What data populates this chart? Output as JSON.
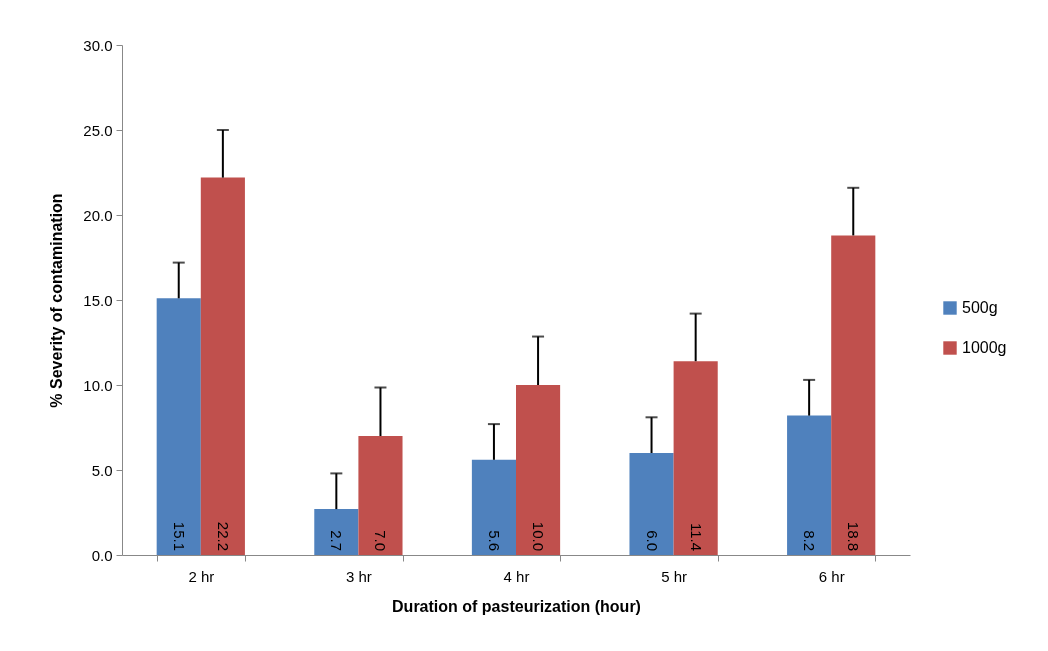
{
  "chart_data": {
    "type": "bar",
    "xlabel": "Duration of pasteurization (hour)",
    "ylabel": "% Severity of  contamination",
    "categories": [
      "2 hr",
      "3 hr",
      "4 hr",
      "5 hr",
      "6 hr"
    ],
    "series": [
      {
        "name": "500g",
        "color": "#4f81bd",
        "values": [
          15.1,
          2.7,
          5.6,
          6.0,
          8.2
        ],
        "value_labels": [
          "15.1",
          "2.7",
          "5.6",
          "6.0",
          "8.2"
        ],
        "errors": [
          [
            15.1,
            17.2
          ],
          [
            2.7,
            4.8
          ],
          [
            5.6,
            7.7
          ],
          [
            6.0,
            8.1
          ],
          [
            8.2,
            10.3
          ]
        ]
      },
      {
        "name": "1000g",
        "color": "#c0504d",
        "values": [
          22.2,
          7.0,
          10.0,
          11.4,
          18.8
        ],
        "value_labels": [
          "22.2",
          "7.0",
          "10.0",
          "11.4",
          "18.8"
        ],
        "errors": [
          [
            22.2,
            25.0
          ],
          [
            7.0,
            9.85
          ],
          [
            10.0,
            12.85
          ],
          [
            11.4,
            14.2
          ],
          [
            18.8,
            21.6
          ]
        ]
      }
    ],
    "ylim": [
      0,
      30
    ],
    "yticks": [
      {
        "value": 0,
        "label": "0.0"
      },
      {
        "value": 5,
        "label": "5.0"
      },
      {
        "value": 10,
        "label": "10.0"
      },
      {
        "value": 15,
        "label": "15.0"
      },
      {
        "value": 20,
        "label": "20.0"
      },
      {
        "value": 25,
        "label": "25.0"
      },
      {
        "value": 30,
        "label": "30.0"
      }
    ],
    "grid": false,
    "legend": "right"
  }
}
